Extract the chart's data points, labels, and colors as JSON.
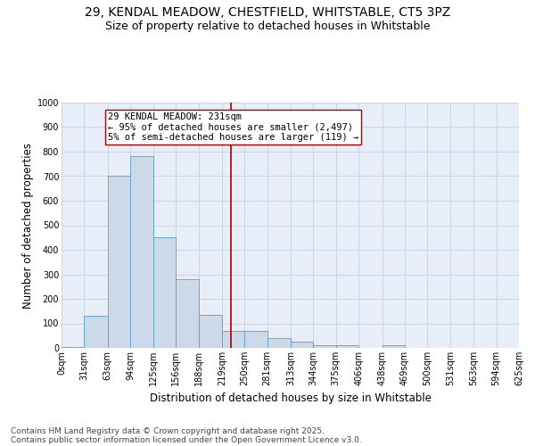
{
  "title_line1": "29, KENDAL MEADOW, CHESTFIELD, WHITSTABLE, CT5 3PZ",
  "title_line2": "Size of property relative to detached houses in Whitstable",
  "xlabel": "Distribution of detached houses by size in Whitstable",
  "ylabel": "Number of detached properties",
  "bin_labels": [
    "0sqm",
    "31sqm",
    "63sqm",
    "94sqm",
    "125sqm",
    "156sqm",
    "188sqm",
    "219sqm",
    "250sqm",
    "281sqm",
    "313sqm",
    "344sqm",
    "375sqm",
    "406sqm",
    "438sqm",
    "469sqm",
    "500sqm",
    "531sqm",
    "563sqm",
    "594sqm",
    "625sqm"
  ],
  "bin_edges": [
    0,
    31,
    63,
    94,
    125,
    156,
    188,
    219,
    250,
    281,
    313,
    344,
    375,
    406,
    438,
    469,
    500,
    531,
    563,
    594,
    625
  ],
  "bar_heights": [
    5,
    130,
    700,
    780,
    450,
    280,
    135,
    70,
    70,
    40,
    25,
    10,
    10,
    0,
    10,
    0,
    0,
    0,
    0,
    0
  ],
  "bar_color": "#ccd9e8",
  "bar_edge_color": "#5a9ec8",
  "property_size": 231,
  "vline_color": "#aa0000",
  "annotation_line1": "29 KENDAL MEADOW: 231sqm",
  "annotation_line2": "← 95% of detached houses are smaller (2,497)",
  "annotation_line3": "5% of semi-detached houses are larger (119) →",
  "annotation_box_color": "white",
  "annotation_box_edge": "#aa0000",
  "ylim": [
    0,
    1000
  ],
  "yticks": [
    0,
    100,
    200,
    300,
    400,
    500,
    600,
    700,
    800,
    900,
    1000
  ],
  "grid_color": "#c8d4e8",
  "background_color": "#e8eef8",
  "footer_line1": "Contains HM Land Registry data © Crown copyright and database right 2025.",
  "footer_line2": "Contains public sector information licensed under the Open Government Licence v3.0.",
  "title_fontsize": 10,
  "subtitle_fontsize": 9,
  "axis_label_fontsize": 8.5,
  "tick_fontsize": 7,
  "annotation_fontsize": 7.5,
  "footer_fontsize": 6.5
}
